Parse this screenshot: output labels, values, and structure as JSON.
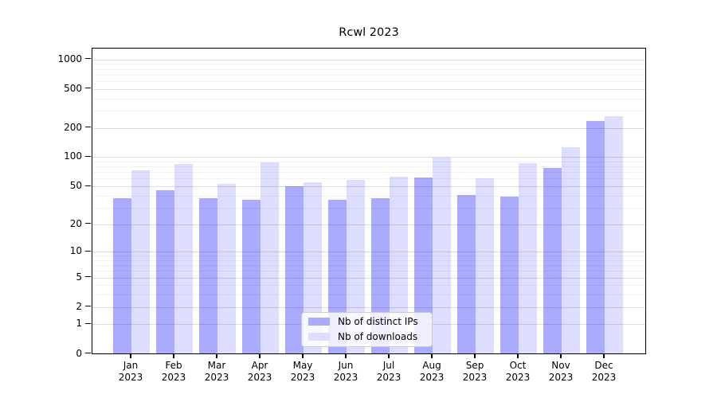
{
  "title": "Rcwl 2023",
  "y_axis": {
    "tick_labels": [
      "0",
      "1",
      "2",
      "5",
      "10",
      "20",
      "50",
      "100",
      "200",
      "500",
      "1000"
    ]
  },
  "x_axis": {
    "months": [
      "Jan",
      "Feb",
      "Mar",
      "Apr",
      "May",
      "Jun",
      "Jul",
      "Aug",
      "Sep",
      "Oct",
      "Nov",
      "Dec"
    ],
    "year": "2023"
  },
  "legend": {
    "items": [
      {
        "label": "Nb of distinct IPs",
        "color": "#aaaaff"
      },
      {
        "label": "Nb of downloads",
        "color": "#ddddff"
      }
    ]
  },
  "chart_data": {
    "type": "bar",
    "title": "Rcwl 2023",
    "categories": [
      "Jan 2023",
      "Feb 2023",
      "Mar 2023",
      "Apr 2023",
      "May 2023",
      "Jun 2023",
      "Jul 2023",
      "Aug 2023",
      "Sep 2023",
      "Oct 2023",
      "Nov 2023",
      "Dec 2023"
    ],
    "series": [
      {
        "name": "Nb of distinct IPs",
        "color": "#aaaaff",
        "values": [
          37,
          45,
          37,
          36,
          50,
          36,
          37,
          61,
          40,
          39,
          77,
          232
        ]
      },
      {
        "name": "Nb of downloads",
        "color": "#ddddff",
        "values": [
          73,
          85,
          52,
          87,
          54,
          58,
          62,
          98,
          60,
          86,
          125,
          260
        ]
      }
    ],
    "xlabel": "",
    "ylabel": "",
    "yscale": "log1p",
    "y_ticks": [
      0,
      1,
      2,
      5,
      10,
      20,
      50,
      100,
      200,
      500,
      1000
    ],
    "y_minor_ticks": [
      3,
      4,
      6,
      7,
      8,
      9,
      30,
      40,
      60,
      70,
      80,
      90,
      300,
      400,
      600,
      700,
      800,
      900
    ],
    "ylim": [
      0,
      1300
    ],
    "grid": "horizontal major and minor, drawn over bars",
    "legend_position": "lower center"
  }
}
